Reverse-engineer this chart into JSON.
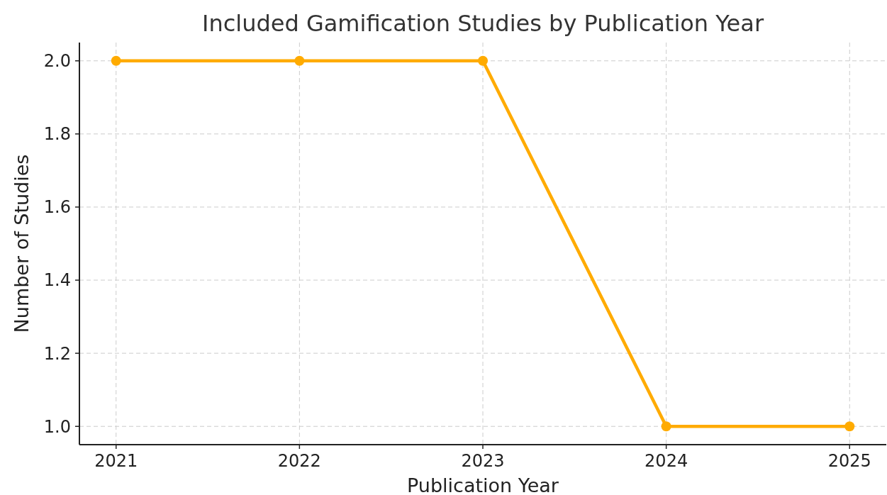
{
  "chart_data": {
    "type": "line",
    "title": "Included Gamification Studies by Publication Year",
    "xlabel": "Publication Year",
    "ylabel": "Number of Studies",
    "x": [
      2021,
      2022,
      2023,
      2024,
      2025
    ],
    "series": [
      {
        "color": "#ffab00",
        "values": [
          2,
          2,
          2,
          1,
          1
        ]
      }
    ],
    "xlim": [
      2020.8,
      2025.2
    ],
    "xticks": [
      2021,
      2022,
      2023,
      2024,
      2025
    ],
    "ylim": [
      0.95,
      2.05
    ],
    "yticks": [
      {
        "value": 1,
        "label": "1.0"
      },
      1.2,
      1.4,
      1.6,
      1.8,
      {
        "value": 2,
        "label": "2.0"
      }
    ],
    "grid": true,
    "marker": "circle",
    "line_style": "solid"
  }
}
